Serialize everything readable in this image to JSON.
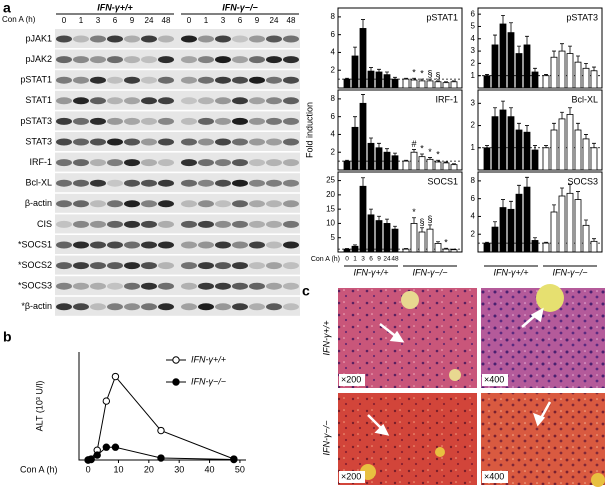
{
  "panel_labels": [
    "a",
    "b",
    "c"
  ],
  "blot": {
    "x_label": "Con A (h)",
    "groups": [
      "IFN-γ+/+",
      "IFN-γ−/−"
    ],
    "times": [
      "0",
      "1",
      "3",
      "6",
      "9",
      "24",
      "48"
    ],
    "rows": [
      "pJAK1",
      "pJAK2",
      "pSTAT1",
      "STAT1",
      "pSTAT3",
      "STAT3",
      "IRF-1",
      "Bcl-XL",
      "β-actin",
      "CIS",
      "*SOCS1",
      "*SOCS2",
      "*SOCS3",
      "*β-actin"
    ]
  },
  "chart_data": [
    {
      "type": "bar",
      "title": "pSTAT1",
      "ylim": [
        0,
        9
      ],
      "yticks": [
        2,
        4,
        6,
        8
      ],
      "reference_line": 1,
      "series": [
        {
          "color": "#000000",
          "values": [
            1,
            3.6,
            6.7,
            1.9,
            1.8,
            1.5,
            1.0
          ],
          "errors": [
            0.1,
            1.0,
            1.0,
            0.4,
            0.3,
            0.3,
            0.2
          ]
        },
        {
          "color": "#ffffff",
          "values": [
            1,
            0.9,
            0.8,
            0.8,
            0.7,
            0.6,
            0.7
          ],
          "errors": [
            0.1,
            0.2,
            0.2,
            0.2,
            0.1,
            0.1,
            0.1
          ],
          "annotations": [
            null,
            "*",
            "*",
            "§",
            "§",
            null,
            null
          ]
        }
      ]
    },
    {
      "type": "bar",
      "title": "IRF-1",
      "y_label": "Fold induction",
      "ylim": [
        0,
        9
      ],
      "yticks": [
        2,
        4,
        6,
        8
      ],
      "reference_line": 1,
      "series": [
        {
          "color": "#000000",
          "values": [
            1,
            4.8,
            7.5,
            3.0,
            2.5,
            2.0,
            1.6
          ],
          "errors": [
            0.1,
            1.2,
            1.0,
            0.6,
            0.5,
            0.4,
            0.3
          ]
        },
        {
          "color": "#ffffff",
          "values": [
            1,
            2.0,
            1.5,
            1.2,
            0.9,
            0.8,
            0.6
          ],
          "errors": [
            0.1,
            0.3,
            0.3,
            0.2,
            0.2,
            0.1,
            0.1
          ],
          "annotations": [
            null,
            "#",
            "*",
            "*",
            "*",
            null,
            null
          ]
        }
      ]
    },
    {
      "type": "bar",
      "title": "SOCS1",
      "x_label": "Con A (h)",
      "categories": [
        "0",
        "1",
        "3",
        "6",
        "9",
        "24",
        "48"
      ],
      "ylim": [
        0,
        28
      ],
      "yticks": [
        5,
        10,
        15,
        20,
        25
      ],
      "reference_line": 1,
      "series": [
        {
          "name": "IFN-γ+/+",
          "color": "#000000",
          "values": [
            1,
            2,
            23,
            13,
            11,
            10,
            8
          ],
          "errors": [
            0.2,
            0.5,
            3,
            2,
            1.5,
            1.5,
            1
          ]
        },
        {
          "name": "IFN-γ−/−",
          "color": "#ffffff",
          "values": [
            1,
            10,
            7,
            8,
            3,
            1,
            0.8
          ],
          "errors": [
            0.2,
            2,
            1.5,
            1.5,
            0.6,
            0.3,
            0.2
          ],
          "annotations": [
            null,
            "*",
            "§",
            "§",
            null,
            "*",
            null
          ]
        }
      ]
    },
    {
      "type": "bar",
      "title": "pSTAT3",
      "ylim": [
        0,
        6.5
      ],
      "yticks": [
        1,
        2,
        3,
        4,
        5,
        6
      ],
      "reference_line": 1,
      "series": [
        {
          "color": "#000000",
          "values": [
            1,
            3.5,
            5.2,
            4.5,
            2.8,
            3.5,
            1.3
          ],
          "errors": [
            0.1,
            0.8,
            0.7,
            0.8,
            0.6,
            0.7,
            0.3
          ]
        },
        {
          "color": "#ffffff",
          "values": [
            1,
            2.5,
            3.0,
            2.8,
            2.1,
            1.6,
            1.4
          ],
          "errors": [
            0.1,
            0.5,
            0.6,
            0.6,
            0.5,
            0.4,
            0.3
          ]
        }
      ]
    },
    {
      "type": "bar",
      "title": "Bcl-XL",
      "ylim": [
        0,
        3.6
      ],
      "yticks": [
        1,
        2,
        3
      ],
      "reference_line": 1,
      "series": [
        {
          "color": "#000000",
          "values": [
            1,
            2.4,
            2.7,
            2.4,
            1.8,
            1.7,
            0.9
          ],
          "errors": [
            0.1,
            0.4,
            0.4,
            0.4,
            0.3,
            0.3,
            0.2
          ]
        },
        {
          "color": "#ffffff",
          "values": [
            1,
            1.8,
            2.3,
            2.5,
            1.8,
            1.4,
            1.0
          ],
          "errors": [
            0.1,
            0.3,
            0.3,
            0.3,
            0.3,
            0.2,
            0.2
          ]
        }
      ]
    },
    {
      "type": "bar",
      "title": "SOCS3",
      "ylim": [
        0,
        9
      ],
      "yticks": [
        2,
        4,
        6,
        8
      ],
      "reference_line": 1,
      "series": [
        {
          "name": "IFN-γ+/+",
          "color": "#000000",
          "values": [
            1,
            2.8,
            5.0,
            4.8,
            6.5,
            7.3,
            1.3
          ],
          "errors": [
            0.1,
            0.6,
            0.9,
            0.9,
            1.0,
            1.1,
            0.3
          ]
        },
        {
          "name": "IFN-γ−/−",
          "color": "#ffffff",
          "values": [
            1,
            4.5,
            6.3,
            6.6,
            5.9,
            3.0,
            1.2
          ],
          "errors": [
            0.1,
            0.8,
            0.9,
            1.0,
            0.9,
            0.6,
            0.3
          ]
        }
      ]
    },
    {
      "type": "line",
      "x_label": "Con A (h)",
      "y_label": "ALT (10³ U/l)",
      "x": [
        0,
        1,
        3,
        6,
        9,
        24,
        48
      ],
      "xlim": [
        -3,
        52
      ],
      "xticks": [
        0,
        10,
        20,
        30,
        40,
        50
      ],
      "ylim": [
        0,
        11
      ],
      "legend": "upper right",
      "series": [
        {
          "name": "IFN-γ+/+",
          "color": "#000000",
          "marker_fill": "#ffffff",
          "values": [
            0,
            0.1,
            1.0,
            6.0,
            8.5,
            3.0,
            0.1
          ]
        },
        {
          "name": "IFN-γ−/−",
          "color": "#000000",
          "marker_fill": "#000000",
          "values": [
            0,
            0.05,
            0.5,
            1.3,
            1.3,
            0.2,
            0.05
          ]
        }
      ]
    }
  ],
  "histology": {
    "rows": [
      "IFN-γ+/+",
      "IFN-γ−/−"
    ],
    "magnifications": [
      "×200",
      "×400"
    ]
  }
}
